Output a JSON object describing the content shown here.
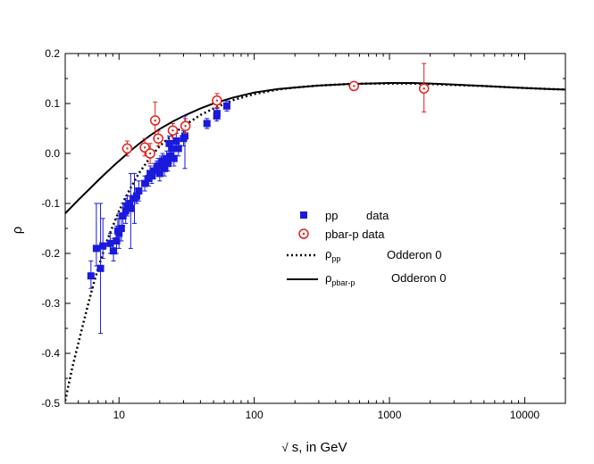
{
  "chart_data": {
    "type": "scatter",
    "title": "",
    "xlabel_symbol": "√",
    "xlabel": "s, in GeV",
    "ylabel": "ρ",
    "xscale": "log",
    "xlim": [
      4,
      20000
    ],
    "ylim": [
      -0.5,
      0.2
    ],
    "x_ticks": [
      10,
      100,
      1000,
      10000
    ],
    "x_tick_labels": [
      "10",
      "100",
      "1000",
      "10000"
    ],
    "y_ticks": [
      -0.5,
      -0.4,
      -0.3,
      -0.2,
      -0.1,
      0.0,
      0.1,
      0.2
    ],
    "y_tick_labels": [
      "-0.5",
      "-0.4",
      "-0.3",
      "-0.2",
      "-0.1",
      "0.0",
      "0.1",
      "0.2"
    ],
    "grid": false,
    "legend_position": "right",
    "legend": [
      {
        "marker": "square",
        "color": "#1a1adc",
        "label_a": "pp",
        "label_b": "data"
      },
      {
        "marker": "circle-dot",
        "color": "#e0201e",
        "label_a": "pbar-p data",
        "label_b": ""
      },
      {
        "marker": "dotted-line",
        "color": "#000000",
        "symbol": "ρ",
        "sub": "pp",
        "label_b": "Odderon 0"
      },
      {
        "marker": "solid-line",
        "color": "#000000",
        "symbol": "ρ",
        "sub": "pbar-p",
        "label_b": "Odderon 0"
      }
    ],
    "series": [
      {
        "name": "pp",
        "kind": "points",
        "marker": "square",
        "color": "#1a1adc",
        "points": [
          {
            "x": 6.2,
            "y": -0.245,
            "lo": -0.27,
            "hi": -0.215
          },
          {
            "x": 6.8,
            "y": -0.19,
            "lo": -0.225,
            "hi": -0.1
          },
          {
            "x": 7.3,
            "y": -0.23,
            "lo": -0.36,
            "hi": -0.1
          },
          {
            "x": 7.6,
            "y": -0.185,
            "lo": -0.21,
            "hi": -0.13
          },
          {
            "x": 8.6,
            "y": -0.18,
            "lo": -0.2,
            "hi": -0.16
          },
          {
            "x": 9.1,
            "y": -0.195,
            "lo": -0.215,
            "hi": -0.17
          },
          {
            "x": 9.6,
            "y": -0.175,
            "lo": -0.2,
            "hi": -0.145
          },
          {
            "x": 9.8,
            "y": -0.155,
            "lo": -0.18,
            "hi": -0.13
          },
          {
            "x": 10.0,
            "y": -0.16,
            "lo": -0.19,
            "hi": -0.12
          },
          {
            "x": 10.4,
            "y": -0.15,
            "lo": -0.175,
            "hi": -0.125
          },
          {
            "x": 10.7,
            "y": -0.125,
            "lo": -0.145,
            "hi": -0.1
          },
          {
            "x": 11.2,
            "y": -0.115,
            "lo": -0.14,
            "hi": -0.09
          },
          {
            "x": 11.5,
            "y": -0.105,
            "lo": -0.125,
            "hi": -0.085
          },
          {
            "x": 12.0,
            "y": -0.1,
            "lo": -0.115,
            "hi": -0.085
          },
          {
            "x": 12.2,
            "y": -0.11,
            "lo": -0.19,
            "hi": -0.04
          },
          {
            "x": 13.0,
            "y": -0.09,
            "lo": -0.14,
            "hi": -0.04
          },
          {
            "x": 13.5,
            "y": -0.085,
            "lo": -0.1,
            "hi": -0.07
          },
          {
            "x": 14.0,
            "y": -0.075,
            "lo": -0.095,
            "hi": -0.055
          },
          {
            "x": 15.5,
            "y": -0.06,
            "lo": -0.075,
            "hi": -0.045
          },
          {
            "x": 16.6,
            "y": -0.05,
            "lo": -0.065,
            "hi": -0.035
          },
          {
            "x": 17.0,
            "y": -0.04,
            "lo": -0.055,
            "hi": -0.025
          },
          {
            "x": 17.5,
            "y": -0.045,
            "lo": -0.06,
            "hi": -0.03
          },
          {
            "x": 18.2,
            "y": -0.035,
            "lo": -0.05,
            "hi": -0.02
          },
          {
            "x": 19.0,
            "y": -0.03,
            "lo": -0.045,
            "hi": -0.015
          },
          {
            "x": 19.5,
            "y": -0.025,
            "lo": -0.04,
            "hi": -0.01
          },
          {
            "x": 20.0,
            "y": -0.04,
            "lo": -0.055,
            "hi": -0.025
          },
          {
            "x": 20.5,
            "y": -0.02,
            "lo": -0.035,
            "hi": -0.005
          },
          {
            "x": 21.0,
            "y": -0.015,
            "lo": -0.03,
            "hi": 0.0
          },
          {
            "x": 21.7,
            "y": -0.03,
            "lo": -0.045,
            "hi": -0.015
          },
          {
            "x": 22.5,
            "y": -0.01,
            "lo": -0.025,
            "hi": 0.005
          },
          {
            "x": 23.0,
            "y": -0.02,
            "lo": -0.035,
            "hi": -0.005
          },
          {
            "x": 23.5,
            "y": 0.02,
            "lo": 0.005,
            "hi": 0.035
          },
          {
            "x": 24.0,
            "y": -0.005,
            "lo": -0.02,
            "hi": 0.01
          },
          {
            "x": 24.5,
            "y": 0.01,
            "lo": -0.005,
            "hi": 0.025
          },
          {
            "x": 25.5,
            "y": -0.01,
            "lo": -0.025,
            "hi": 0.005
          },
          {
            "x": 26.5,
            "y": 0.025,
            "lo": 0.01,
            "hi": 0.04
          },
          {
            "x": 27.5,
            "y": 0.01,
            "lo": -0.005,
            "hi": 0.025
          },
          {
            "x": 30.0,
            "y": 0.03,
            "lo": 0.015,
            "hi": 0.045
          },
          {
            "x": 30.7,
            "y": 0.035,
            "lo": -0.03,
            "hi": 0.075
          },
          {
            "x": 44.7,
            "y": 0.06,
            "lo": 0.05,
            "hi": 0.07
          },
          {
            "x": 52.8,
            "y": 0.075,
            "lo": 0.065,
            "hi": 0.085
          },
          {
            "x": 53.0,
            "y": 0.08,
            "lo": 0.07,
            "hi": 0.09
          },
          {
            "x": 62.7,
            "y": 0.095,
            "lo": 0.085,
            "hi": 0.105
          }
        ]
      },
      {
        "name": "pbar-p data",
        "kind": "points",
        "marker": "circle-dot",
        "color": "#e0201e",
        "points": [
          {
            "x": 11.5,
            "y": 0.01,
            "lo": -0.005,
            "hi": 0.025
          },
          {
            "x": 15.5,
            "y": 0.012,
            "lo": -0.005,
            "hi": 0.03
          },
          {
            "x": 17.0,
            "y": 0.0,
            "lo": -0.02,
            "hi": 0.02
          },
          {
            "x": 18.5,
            "y": 0.066,
            "lo": 0.03,
            "hi": 0.103
          },
          {
            "x": 19.5,
            "y": 0.03,
            "lo": 0.015,
            "hi": 0.045
          },
          {
            "x": 25.0,
            "y": 0.046,
            "lo": 0.032,
            "hi": 0.06
          },
          {
            "x": 31.0,
            "y": 0.055,
            "lo": 0.04,
            "hi": 0.07
          },
          {
            "x": 53.0,
            "y": 0.106,
            "lo": 0.092,
            "hi": 0.12
          },
          {
            "x": 546.0,
            "y": 0.135,
            "lo": 0.128,
            "hi": 0.142
          },
          {
            "x": 1800.0,
            "y": 0.13,
            "lo": 0.083,
            "hi": 0.18
          }
        ]
      },
      {
        "name": "ρpp Odderon 0",
        "kind": "curve",
        "style": "dotted",
        "color": "#000000",
        "x": [
          4,
          4.5,
          5,
          5.5,
          6,
          6.5,
          7,
          7.5,
          8,
          9,
          10,
          12,
          14,
          17,
          20,
          25,
          30,
          40,
          50,
          70,
          100,
          150,
          200,
          300,
          500,
          700,
          1000,
          1500,
          2000,
          3000,
          5000,
          7000,
          10000,
          15000,
          20000
        ],
        "y": [
          -0.495,
          -0.43,
          -0.38,
          -0.335,
          -0.295,
          -0.26,
          -0.23,
          -0.205,
          -0.18,
          -0.145,
          -0.115,
          -0.072,
          -0.04,
          -0.008,
          0.015,
          0.038,
          0.055,
          0.077,
          0.09,
          0.107,
          0.119,
          0.128,
          0.132,
          0.136,
          0.139,
          0.14,
          0.14,
          0.14,
          0.139,
          0.137,
          0.135,
          0.133,
          0.131,
          0.129,
          0.128
        ]
      },
      {
        "name": "ρpbar-p Odderon 0",
        "kind": "curve",
        "style": "solid",
        "color": "#000000",
        "x": [
          4,
          5,
          6,
          7,
          8,
          9,
          10,
          12,
          14,
          17,
          20,
          25,
          30,
          40,
          50,
          70,
          100,
          150,
          200,
          300,
          500,
          700,
          1000,
          1500,
          2000,
          3000,
          5000,
          7000,
          10000,
          15000,
          20000
        ],
        "y": [
          -0.12,
          -0.093,
          -0.072,
          -0.054,
          -0.039,
          -0.026,
          -0.015,
          0.004,
          0.019,
          0.036,
          0.049,
          0.064,
          0.075,
          0.09,
          0.1,
          0.112,
          0.122,
          0.129,
          0.132,
          0.136,
          0.139,
          0.14,
          0.141,
          0.141,
          0.14,
          0.138,
          0.135,
          0.133,
          0.131,
          0.129,
          0.128
        ]
      }
    ]
  }
}
